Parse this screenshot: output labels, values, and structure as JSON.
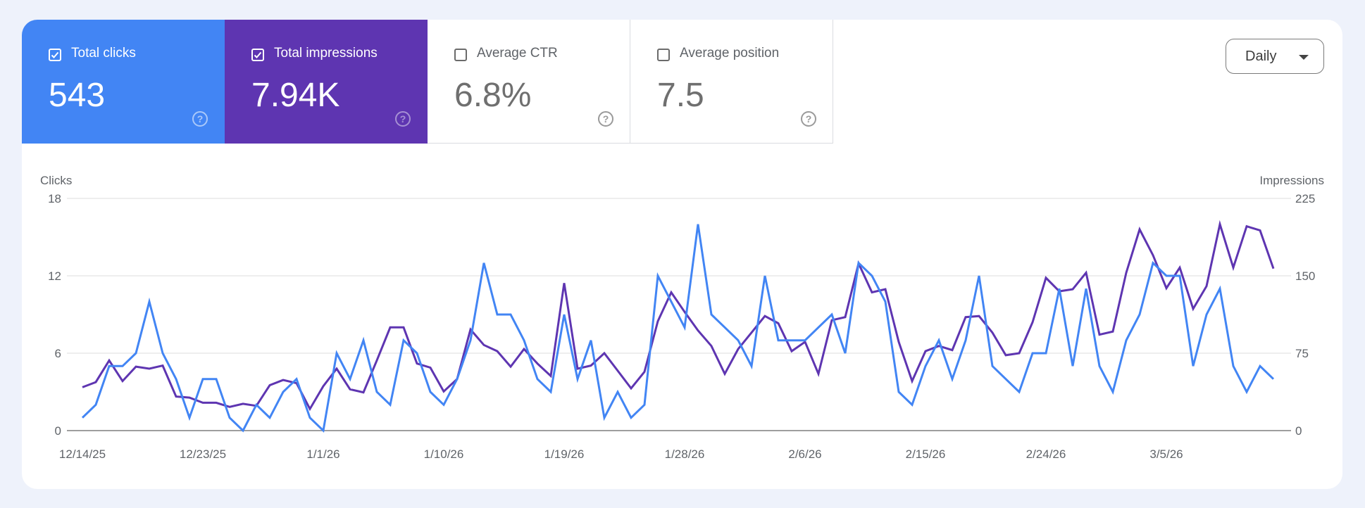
{
  "metrics": [
    {
      "label": "Total clicks",
      "value": "543",
      "checked": true,
      "color": "#4285f4"
    },
    {
      "label": "Total impressions",
      "value": "7.94K",
      "checked": true,
      "color": "#5e35b1"
    },
    {
      "label": "Average CTR",
      "value": "6.8%",
      "checked": false
    },
    {
      "label": "Average position",
      "value": "7.5",
      "checked": false
    }
  ],
  "help_icon": "?",
  "granularity": {
    "selected": "Daily"
  },
  "chart_data": {
    "type": "line",
    "grid": true,
    "left_axis": {
      "label": "Clicks",
      "ylim": [
        0,
        18
      ],
      "ticks": [
        "0",
        "6",
        "12",
        "18"
      ]
    },
    "right_axis": {
      "label": "Impressions",
      "ylim": [
        0,
        225
      ],
      "ticks": [
        "0",
        "75",
        "150",
        "225"
      ]
    },
    "x_ticks": [
      "12/14/25",
      "12/23/25",
      "1/1/26",
      "1/10/26",
      "1/19/26",
      "1/28/26",
      "2/6/26",
      "2/15/26",
      "2/24/26",
      "3/5/26"
    ],
    "x": [
      "12/14/25",
      "12/15/25",
      "12/16/25",
      "12/17/25",
      "12/18/25",
      "12/19/25",
      "12/20/25",
      "12/21/25",
      "12/22/25",
      "12/23/25",
      "12/24/25",
      "12/25/25",
      "12/26/25",
      "12/27/25",
      "12/28/25",
      "12/29/25",
      "12/30/25",
      "12/31/25",
      "1/1/26",
      "1/2/26",
      "1/3/26",
      "1/4/26",
      "1/5/26",
      "1/6/26",
      "1/7/26",
      "1/8/26",
      "1/9/26",
      "1/10/26",
      "1/11/26",
      "1/12/26",
      "1/13/26",
      "1/14/26",
      "1/15/26",
      "1/16/26",
      "1/17/26",
      "1/18/26",
      "1/19/26",
      "1/20/26",
      "1/21/26",
      "1/22/26",
      "1/23/26",
      "1/24/26",
      "1/25/26",
      "1/26/26",
      "1/27/26",
      "1/28/26",
      "1/29/26",
      "1/30/26",
      "1/31/26",
      "2/1/26",
      "2/2/26",
      "2/3/26",
      "2/4/26",
      "2/5/26",
      "2/6/26",
      "2/7/26",
      "2/8/26",
      "2/9/26",
      "2/10/26",
      "2/11/26",
      "2/12/26",
      "2/13/26",
      "2/14/26",
      "2/15/26",
      "2/16/26",
      "2/17/26",
      "2/18/26",
      "2/19/26",
      "2/20/26",
      "2/21/26",
      "2/22/26",
      "2/23/26",
      "2/24/26",
      "2/25/26",
      "2/26/26",
      "2/27/26",
      "2/28/26",
      "3/1/26",
      "3/2/26",
      "3/3/26",
      "3/4/26",
      "3/5/26",
      "3/6/26",
      "3/7/26",
      "3/8/26",
      "3/9/26",
      "3/10/26",
      "3/11/26",
      "3/12/26",
      "3/13/26"
    ],
    "series": [
      {
        "name": "Clicks",
        "axis": "left",
        "color": "#4285f4",
        "values": [
          1,
          2,
          5,
          5,
          6,
          10,
          6,
          4,
          1,
          4,
          4,
          1,
          0,
          2,
          1,
          3,
          4,
          1,
          0,
          6,
          4,
          7,
          3,
          2,
          7,
          6,
          3,
          2,
          4,
          7,
          13,
          9,
          9,
          7,
          4,
          3,
          9,
          4,
          7,
          1,
          3,
          1,
          2,
          12,
          10,
          8,
          16,
          9,
          8,
          7,
          5,
          12,
          7,
          7,
          7,
          8,
          9,
          6,
          13,
          12,
          10,
          3,
          2,
          5,
          7,
          4,
          7,
          12,
          5,
          4,
          3,
          6,
          6,
          11,
          5,
          11,
          5,
          3,
          7,
          9,
          13,
          12,
          12,
          5,
          9,
          11,
          5,
          3,
          5,
          4
        ]
      },
      {
        "name": "Impressions",
        "axis": "right",
        "color": "#5e35b1",
        "values": [
          42,
          47,
          68,
          48,
          62,
          60,
          63,
          33,
          32,
          27,
          27,
          23,
          26,
          24,
          44,
          49,
          46,
          21,
          43,
          60,
          40,
          37,
          68,
          100,
          100,
          65,
          61,
          38,
          50,
          98,
          83,
          77,
          62,
          79,
          65,
          53,
          143,
          60,
          63,
          75,
          58,
          41,
          57,
          106,
          134,
          115,
          97,
          82,
          55,
          79,
          95,
          111,
          104,
          77,
          86,
          55,
          107,
          110,
          162,
          134,
          137,
          86,
          48,
          77,
          82,
          78,
          110,
          111,
          95,
          73,
          75,
          105,
          148,
          135,
          137,
          153,
          93,
          96,
          153,
          195,
          170,
          138,
          158,
          118,
          140,
          200,
          158,
          198,
          194,
          157
        ]
      }
    ]
  }
}
